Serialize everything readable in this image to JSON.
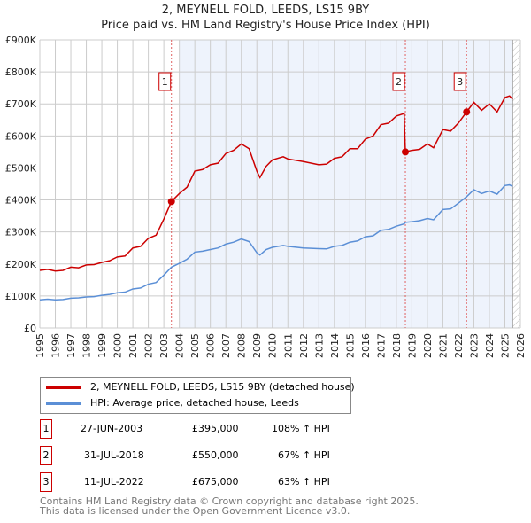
{
  "chart_data": {
    "type": "line",
    "title": "2, MEYNELL FOLD, LEEDS, LS15 9BY",
    "subtitle": "Price paid vs. HM Land Registry's House Price Index (HPI)",
    "xlim": [
      1995,
      2026
    ],
    "ylim": [
      0,
      900000
    ],
    "x_ticks": [
      "1995",
      "1996",
      "1997",
      "1998",
      "1999",
      "2000",
      "2001",
      "2002",
      "2003",
      "2004",
      "2005",
      "2006",
      "2007",
      "2008",
      "2009",
      "2010",
      "2011",
      "2012",
      "2013",
      "2014",
      "2015",
      "2016",
      "2017",
      "2018",
      "2019",
      "2020",
      "2021",
      "2022",
      "2023",
      "2024",
      "2025",
      "2026"
    ],
    "y_ticks": [
      "£0",
      "£100K",
      "£200K",
      "£300K",
      "£400K",
      "£500K",
      "£600K",
      "£700K",
      "£800K",
      "£900K"
    ],
    "grid": true,
    "series": [
      {
        "name": "2, MEYNELL FOLD, LEEDS, LS15 9BY (detached house)",
        "color": "#cc0000",
        "x": [
          1995,
          1995.5,
          1996,
          1996.5,
          1997,
          1997.5,
          1998,
          1998.5,
          1999,
          1999.5,
          2000,
          2000.5,
          2001,
          2001.5,
          2002,
          2002.5,
          2003,
          2003.49,
          2004,
          2004.5,
          2005,
          2005.5,
          2006,
          2006.5,
          2007,
          2007.5,
          2008,
          2008.5,
          2009,
          2009.2,
          2009.6,
          2010,
          2010.7,
          2011,
          2012,
          2013,
          2013.5,
          2014,
          2014.5,
          2015,
          2015.5,
          2016,
          2016.5,
          2017,
          2017.5,
          2018,
          2018.5,
          2018.58,
          2019,
          2019.5,
          2020,
          2020.4,
          2021,
          2021.5,
          2022,
          2022.53,
          2023,
          2023.5,
          2024,
          2024.5,
          2025,
          2025.3,
          2025.5
        ],
        "y": [
          180000,
          183000,
          178000,
          180000,
          190000,
          188000,
          197000,
          198000,
          205000,
          210000,
          222000,
          225000,
          250000,
          255000,
          280000,
          290000,
          340000,
          395000,
          420000,
          440000,
          490000,
          495000,
          510000,
          515000,
          545000,
          555000,
          575000,
          560000,
          490000,
          470000,
          505000,
          525000,
          535000,
          528000,
          520000,
          510000,
          512000,
          530000,
          535000,
          560000,
          560000,
          590000,
          600000,
          635000,
          640000,
          662000,
          670000,
          550000,
          555000,
          558000,
          575000,
          563000,
          620000,
          615000,
          640000,
          675000,
          705000,
          680000,
          700000,
          675000,
          720000,
          725000,
          715000
        ]
      },
      {
        "name": "HPI: Average price, detached house, Leeds",
        "color": "#5b8fd6",
        "x": [
          1995,
          1995.5,
          1996,
          1996.5,
          1997,
          1997.5,
          1998,
          1998.5,
          1999,
          1999.5,
          2000,
          2000.5,
          2001,
          2001.5,
          2002,
          2002.5,
          2003,
          2003.49,
          2004,
          2004.5,
          2005,
          2005.5,
          2006,
          2006.5,
          2007,
          2007.5,
          2008,
          2008.5,
          2009,
          2009.2,
          2009.6,
          2010,
          2010.7,
          2011,
          2012,
          2013,
          2013.5,
          2014,
          2014.5,
          2015,
          2015.5,
          2016,
          2016.5,
          2017,
          2017.5,
          2018,
          2018.5,
          2018.58,
          2019,
          2019.5,
          2020,
          2020.4,
          2021,
          2021.5,
          2022,
          2022.53,
          2023,
          2023.5,
          2024,
          2024.5,
          2025,
          2025.3,
          2025.5
        ],
        "y": [
          88000,
          90000,
          88000,
          89000,
          93000,
          94000,
          97000,
          98000,
          102000,
          105000,
          110000,
          112000,
          122000,
          125000,
          137000,
          142000,
          165000,
          190000,
          202000,
          215000,
          237000,
          240000,
          245000,
          250000,
          262000,
          268000,
          278000,
          270000,
          235000,
          228000,
          245000,
          252000,
          258000,
          255000,
          250000,
          248000,
          247000,
          255000,
          258000,
          268000,
          272000,
          285000,
          288000,
          305000,
          308000,
          318000,
          325000,
          330000,
          332000,
          335000,
          342000,
          338000,
          370000,
          372000,
          390000,
          410000,
          432000,
          420000,
          428000,
          418000,
          445000,
          447000,
          442000
        ]
      }
    ],
    "sales": [
      {
        "label": "1",
        "x": 2003.49,
        "price": 395000,
        "date": "27-JUN-2003",
        "price_text": "£395,000",
        "hpi": "108% ↑ HPI"
      },
      {
        "label": "2",
        "x": 2018.58,
        "price": 550000,
        "date": "31-JUL-2018",
        "price_text": "£550,000",
        "hpi": "67% ↑ HPI"
      },
      {
        "label": "3",
        "x": 2022.53,
        "price": 675000,
        "date": "11-JUL-2022",
        "price_text": "£675,000",
        "hpi": "63% ↑ HPI"
      }
    ],
    "shaded_range": [
      2004,
      2025.5
    ],
    "hatched_range": [
      2025.5,
      2026
    ]
  },
  "footer": [
    "Contains HM Land Registry data © Crown copyright and database right 2025.",
    "This data is licensed under the Open Government Licence v3.0."
  ]
}
